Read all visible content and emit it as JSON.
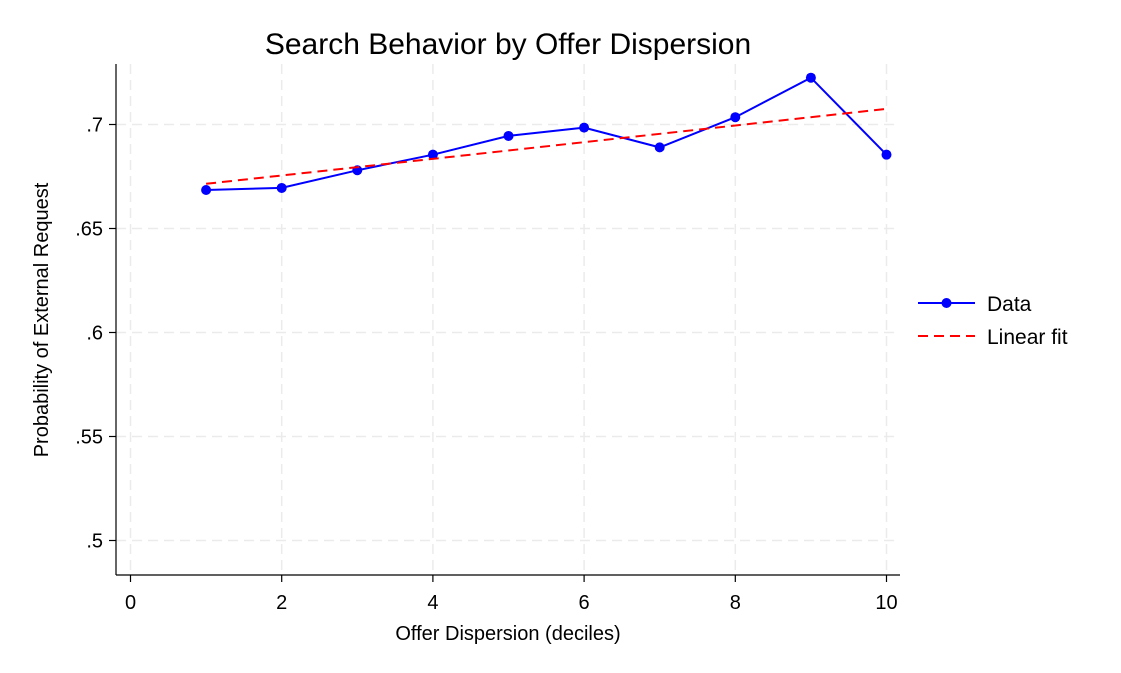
{
  "chart_data": {
    "type": "line",
    "title": "Search Behavior by Offer Dispersion",
    "xlabel": "Offer Dispersion (deciles)",
    "ylabel": "Probability of External Request",
    "xlim": [
      0,
      10
    ],
    "ylim": [
      0.5,
      0.72
    ],
    "x_ticks": [
      0,
      2,
      4,
      6,
      8,
      10
    ],
    "x_tick_labels": [
      "0",
      "2",
      "4",
      "6",
      "8",
      "10"
    ],
    "y_ticks": [
      0.5,
      0.55,
      0.6,
      0.65,
      0.7
    ],
    "y_tick_labels": [
      ".5",
      ".55",
      ".6",
      ".65",
      ".7"
    ],
    "grid": true,
    "legend_position": "right",
    "series": [
      {
        "name": "Data",
        "style": "solid-markers",
        "color": "#0000ff",
        "x": [
          1,
          2,
          3,
          4,
          5,
          6,
          7,
          8,
          9,
          10
        ],
        "y": [
          0.6685,
          0.6695,
          0.678,
          0.6855,
          0.6945,
          0.6985,
          0.689,
          0.7035,
          0.7225,
          0.6855
        ]
      },
      {
        "name": "Linear fit",
        "style": "dashed",
        "color": "#ff0000",
        "x": [
          1,
          10
        ],
        "y": [
          0.6715,
          0.7075
        ]
      }
    ]
  }
}
